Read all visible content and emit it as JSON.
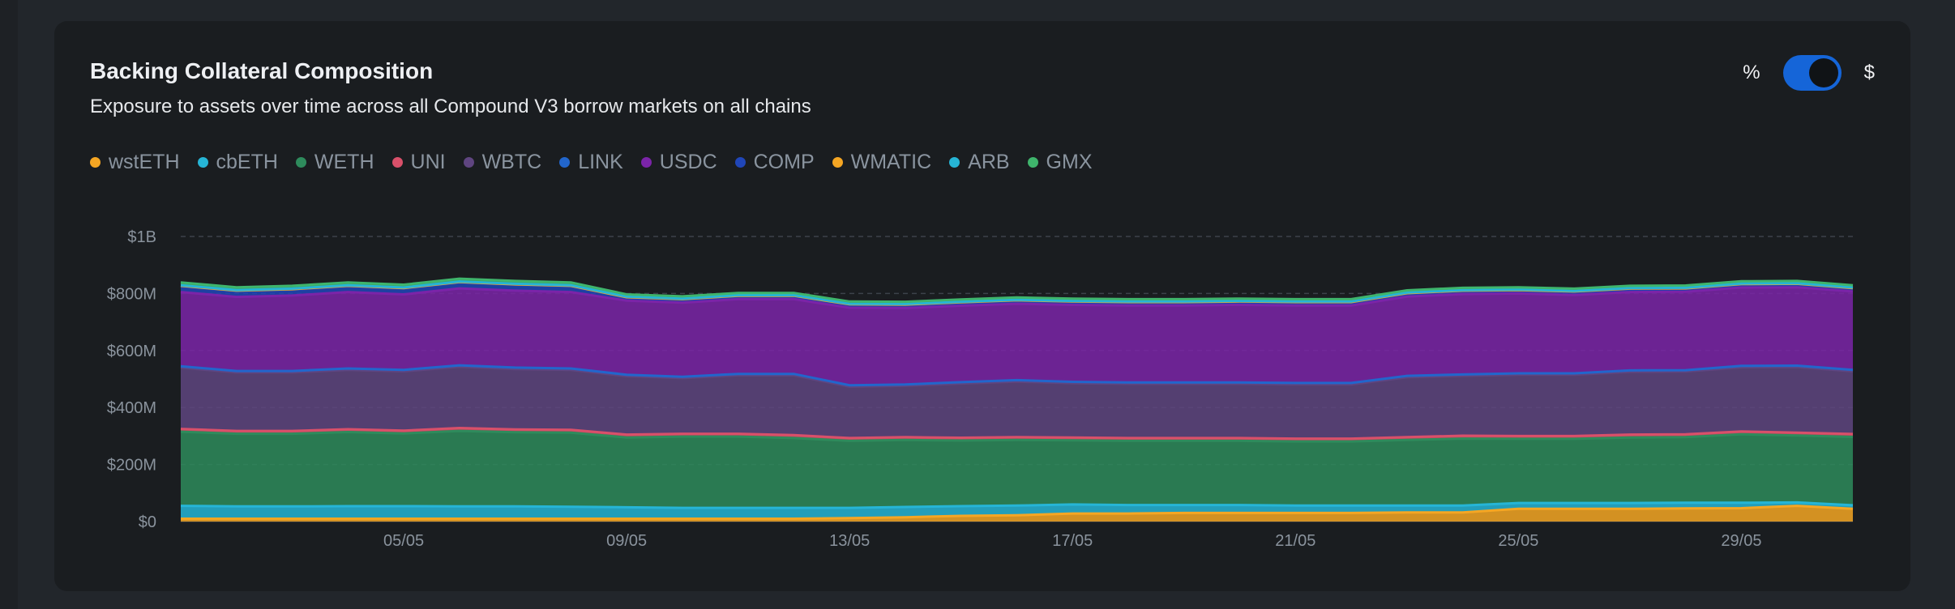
{
  "header": {
    "title": "Backing Collateral Composition",
    "subtitle": "Exposure to assets over time across all Compound V3 borrow markets on all chains"
  },
  "toggle": {
    "left_label": "%",
    "right_label": "$",
    "selected": "$"
  },
  "colors": {
    "wstETH": "#f5a623",
    "cbETH": "#26b5d6",
    "WETH": "#2e8b5c",
    "UNI": "#d9506a",
    "WBTC": "#5f4580",
    "LINK": "#2266cc",
    "USDC": "#7b24a8",
    "COMP": "#2046b8",
    "WMATIC": "#f5a623",
    "ARB": "#26b5d6",
    "GMX": "#3fb56c"
  },
  "chart_data": {
    "type": "area",
    "stacked": true,
    "title": "Backing Collateral Composition",
    "xlabel": "",
    "ylabel": "",
    "ylim": [
      0,
      1000000000
    ],
    "y_ticks": [
      "$0",
      "$200M",
      "$400M",
      "$600M",
      "$800M",
      "$1B"
    ],
    "y_tick_values": [
      0,
      200000000,
      400000000,
      600000000,
      800000000,
      1000000000
    ],
    "x_ticks": [
      "05/05",
      "09/05",
      "13/05",
      "17/05",
      "21/05",
      "25/05",
      "29/05"
    ],
    "x_tick_index": [
      4,
      8,
      12,
      16,
      20,
      24,
      28
    ],
    "x": [
      "01/05",
      "02/05",
      "03/05",
      "04/05",
      "05/05",
      "06/05",
      "07/05",
      "08/05",
      "09/05",
      "10/05",
      "11/05",
      "12/05",
      "13/05",
      "14/05",
      "15/05",
      "16/05",
      "17/05",
      "18/05",
      "19/05",
      "20/05",
      "21/05",
      "22/05",
      "23/05",
      "24/05",
      "25/05",
      "26/05",
      "27/05",
      "28/05",
      "29/05",
      "30/05",
      "31/05"
    ],
    "series": [
      {
        "name": "wstETH",
        "values": [
          10,
          10,
          10,
          10,
          10,
          10,
          10,
          10,
          10,
          10,
          10,
          10,
          12,
          15,
          20,
          22,
          28,
          28,
          30,
          30,
          30,
          30,
          32,
          32,
          45,
          45,
          45,
          46,
          47,
          55,
          45
        ]
      },
      {
        "name": "cbETH",
        "values": [
          45,
          43,
          43,
          44,
          44,
          43,
          43,
          42,
          40,
          38,
          38,
          38,
          36,
          36,
          34,
          34,
          32,
          30,
          28,
          28,
          26,
          26,
          24,
          24,
          20,
          20,
          20,
          20,
          19,
          12,
          12
        ]
      },
      {
        "name": "WETH",
        "values": [
          260,
          255,
          255,
          260,
          255,
          265,
          260,
          260,
          245,
          250,
          250,
          245,
          235,
          235,
          230,
          230,
          225,
          225,
          225,
          225,
          225,
          225,
          230,
          235,
          225,
          225,
          230,
          230,
          240,
          235,
          240
        ]
      },
      {
        "name": "UNI",
        "values": [
          10,
          10,
          10,
          10,
          10,
          10,
          10,
          10,
          10,
          10,
          10,
          10,
          10,
          10,
          10,
          10,
          10,
          10,
          10,
          10,
          10,
          10,
          10,
          10,
          10,
          10,
          10,
          10,
          10,
          10,
          10
        ]
      },
      {
        "name": "WBTC",
        "values": [
          215,
          205,
          205,
          208,
          208,
          215,
          212,
          210,
          205,
          195,
          205,
          210,
          180,
          180,
          190,
          195,
          190,
          190,
          190,
          190,
          190,
          190,
          210,
          210,
          215,
          215,
          220,
          220,
          225,
          230,
          220
        ]
      },
      {
        "name": "LINK",
        "values": [
          5,
          5,
          5,
          5,
          5,
          5,
          5,
          5,
          5,
          5,
          5,
          5,
          5,
          5,
          5,
          5,
          5,
          5,
          5,
          5,
          5,
          5,
          5,
          5,
          5,
          5,
          5,
          5,
          5,
          5,
          5
        ]
      },
      {
        "name": "USDC",
        "values": [
          260,
          260,
          265,
          268,
          265,
          270,
          270,
          268,
          260,
          260,
          262,
          262,
          272,
          268,
          268,
          268,
          270,
          270,
          270,
          272,
          272,
          272,
          278,
          282,
          280,
          275,
          275,
          275,
          275,
          275,
          275
        ]
      },
      {
        "name": "COMP",
        "values": [
          20,
          20,
          20,
          20,
          20,
          20,
          20,
          20,
          10,
          10,
          10,
          10,
          10,
          10,
          10,
          10,
          10,
          10,
          10,
          10,
          10,
          10,
          10,
          10,
          10,
          10,
          10,
          10,
          10,
          10,
          10
        ]
      },
      {
        "name": "WMATIC",
        "values": [
          2,
          2,
          2,
          2,
          2,
          2,
          2,
          2,
          2,
          2,
          2,
          2,
          2,
          2,
          2,
          2,
          2,
          2,
          2,
          2,
          2,
          2,
          2,
          2,
          2,
          2,
          2,
          2,
          2,
          2,
          2
        ]
      },
      {
        "name": "ARB",
        "values": [
          2,
          2,
          2,
          2,
          2,
          2,
          2,
          2,
          2,
          2,
          2,
          2,
          2,
          2,
          2,
          2,
          2,
          2,
          2,
          2,
          2,
          2,
          2,
          2,
          2,
          2,
          2,
          2,
          2,
          2,
          2
        ]
      },
      {
        "name": "GMX",
        "values": [
          10,
          10,
          10,
          10,
          10,
          10,
          10,
          10,
          8,
          8,
          8,
          8,
          8,
          8,
          8,
          8,
          8,
          8,
          8,
          8,
          8,
          8,
          8,
          8,
          8,
          8,
          8,
          8,
          8,
          8,
          8
        ]
      }
    ],
    "value_unit": "millions USD",
    "legend_position": "top-left"
  }
}
